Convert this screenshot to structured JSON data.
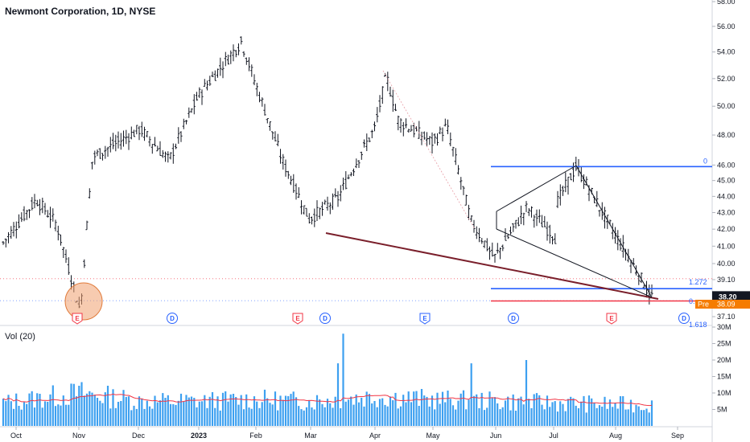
{
  "header": {
    "title": "Newmont Corporation, 1D, NYSE"
  },
  "volume_pane": {
    "label": "Vol (20)"
  },
  "chart_data": [
    {
      "type": "ohlc",
      "title": "Newmont Corporation, 1D, NYSE",
      "y_axis": {
        "ticks": [
          37.1,
          38.2,
          39.1,
          40.0,
          41.0,
          42.0,
          43.0,
          44.0,
          45.0,
          46.0,
          48.0,
          50.0,
          52.0,
          54.0,
          56.0,
          58.0
        ],
        "tick_labels": [
          "37.10",
          "38.20",
          "39.10",
          "40.00",
          "41.00",
          "42.00",
          "43.00",
          "44.00",
          "45.00",
          "46.00",
          "48.00",
          "50.00",
          "52.00",
          "54.00",
          "56.00",
          "58.00"
        ],
        "scale": "log"
      },
      "x_axis": {
        "labels": [
          "Oct",
          "Nov",
          "Dec",
          "2023",
          "Feb",
          "Mar",
          "Apr",
          "May",
          "Jun",
          "Jul",
          "Aug",
          "Sep"
        ]
      },
      "price_anchors": [
        {
          "x": "Oct",
          "y": 41.2
        },
        {
          "x": "mid-Oct",
          "y": 43.8
        },
        {
          "x": "late-Oct",
          "y": 42.3
        },
        {
          "x": "Nov",
          "y": 37.3
        },
        {
          "x": "early-Nov",
          "y": 46.5
        },
        {
          "x": "Dec",
          "y": 48.4
        },
        {
          "x": "mid-Dec",
          "y": 46.3
        },
        {
          "x": "2023",
          "y": 50.8
        },
        {
          "x": "mid-Jan",
          "y": 54.8
        },
        {
          "x": "Feb",
          "y": 51.5
        },
        {
          "x": "mid-Feb",
          "y": 46.4
        },
        {
          "x": "Mar",
          "y": 42.6
        },
        {
          "x": "mid-Mar",
          "y": 43.9
        },
        {
          "x": "Apr",
          "y": 48.5
        },
        {
          "x": "mid-Apr",
          "y": 52.2
        },
        {
          "x": "late-Apr",
          "y": 49.0
        },
        {
          "x": "May",
          "y": 47.5
        },
        {
          "x": "mid-May",
          "y": 48.6
        },
        {
          "x": "late-May",
          "y": 42.5
        },
        {
          "x": "Jun",
          "y": 40.3
        },
        {
          "x": "mid-Jun",
          "y": 43.3
        },
        {
          "x": "late-Jun",
          "y": 41.5
        },
        {
          "x": "Jul",
          "y": 43.2
        },
        {
          "x": "mid-Jul",
          "y": 45.9
        },
        {
          "x": "late-Jul",
          "y": 43.3
        },
        {
          "x": "Aug",
          "y": 41.6
        },
        {
          "x": "mid-Aug",
          "y": 39.7
        },
        {
          "x": "late-Aug",
          "y": 38.2
        }
      ],
      "last_price": {
        "label": "38.20",
        "value": 38.2
      },
      "premarket": {
        "label": "Pre",
        "value_label": "38.09"
      },
      "fib_levels": [
        {
          "label": "0",
          "value": 45.9
        },
        {
          "label": "1.272",
          "value": 38.6
        },
        {
          "label": "1.618",
          "value": 36.9
        }
      ],
      "fib_partial_label": "0.",
      "reference_lines": [
        {
          "name": "dotted-red",
          "value": 39.15
        },
        {
          "name": "dotted-blue",
          "value": 37.95
        }
      ],
      "markers": [
        {
          "type": "E",
          "x": "Nov"
        },
        {
          "type": "D",
          "x": "Dec"
        },
        {
          "type": "E",
          "x": "Mar"
        },
        {
          "type": "D",
          "x": "Mar"
        },
        {
          "type": "E",
          "x": "Apr"
        },
        {
          "type": "D",
          "x": "Jun"
        },
        {
          "type": "E",
          "x": "Jul"
        },
        {
          "type": "D",
          "x": "Aug"
        }
      ],
      "colors": {
        "bars": "#131722",
        "fib": "#2962ff",
        "trendline": "#7a1f2b",
        "red_level": "#f23645",
        "circle": "#f0a070",
        "last_price_bg": "#131722",
        "pre_bg": "#f57c00"
      }
    },
    {
      "type": "bar",
      "title": "Vol (20)",
      "y_axis": {
        "ticks": [
          5,
          10,
          15,
          20,
          25,
          30
        ],
        "tick_labels": [
          "5M",
          "10M",
          "15M",
          "20M",
          "25M",
          "30M"
        ]
      },
      "volume_anchors": [
        {
          "x": "Oct",
          "y": 7.0
        },
        {
          "x": "Nov",
          "y": 10.0
        },
        {
          "x": "Dec",
          "y": 7.5
        },
        {
          "x": "2023",
          "y": 7.5
        },
        {
          "x": "Feb",
          "y": 8.0
        },
        {
          "x": "Mar",
          "y": 7.5
        },
        {
          "x": "Apr",
          "y": 9.0
        },
        {
          "x": "May",
          "y": 8.0
        },
        {
          "x": "Jun",
          "y": 7.5
        },
        {
          "x": "Jul",
          "y": 7.0
        },
        {
          "x": "Aug",
          "y": 6.5
        }
      ],
      "spikes": [
        {
          "x": "mid-Mar",
          "y": 19.0
        },
        {
          "x": "mid-Mar",
          "y": 28.0
        },
        {
          "x": "late-May",
          "y": 19.0
        },
        {
          "x": "mid-Jun",
          "y": 20.0
        }
      ],
      "moving_average": {
        "value_approx": 8.0,
        "color": "#f23645"
      },
      "colors": {
        "bars": "#3da0f0"
      }
    }
  ]
}
